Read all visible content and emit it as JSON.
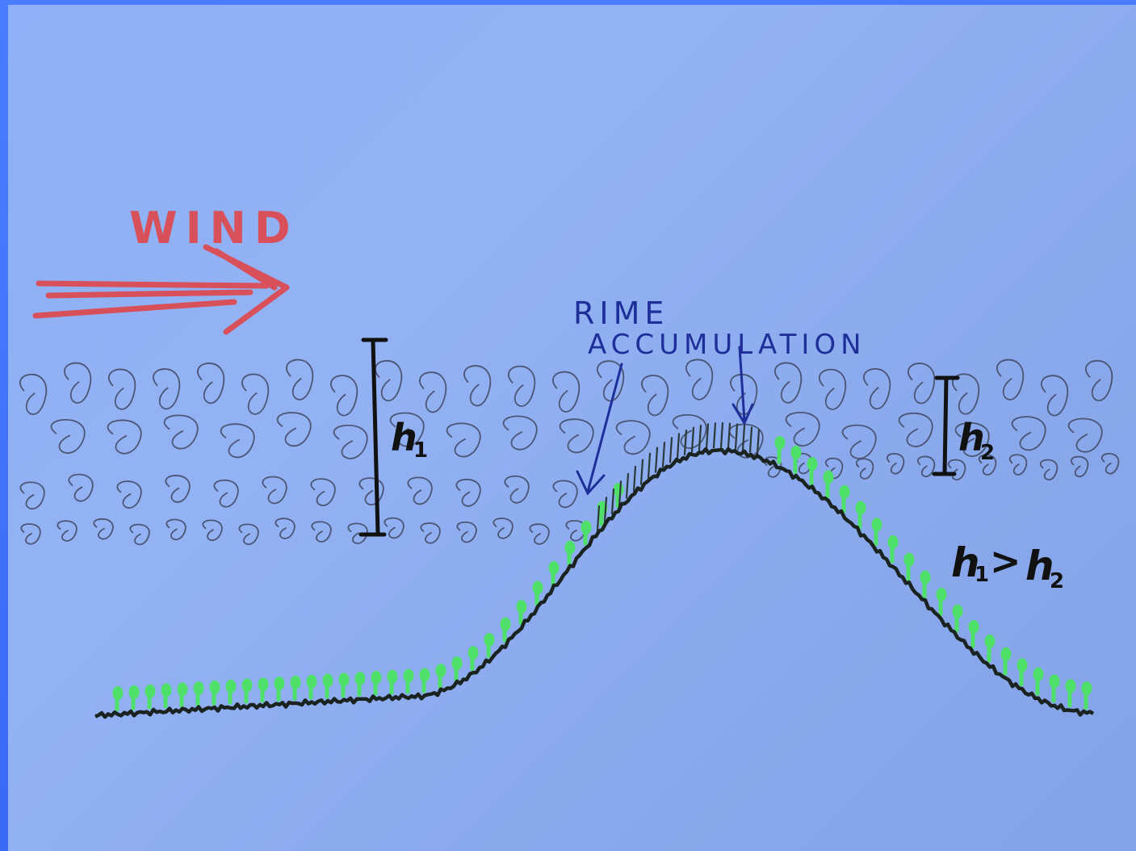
{
  "labels": {
    "wind": "WIND",
    "rime": "RIME",
    "accumulation": "ACCUMULATION",
    "h1": "h",
    "h1_sub": "1",
    "h2": "h",
    "h2_sub": "2",
    "relation_a": "h",
    "relation_a_sub": "1",
    "relation_op": ">",
    "relation_b": "h",
    "relation_b_sub": "2"
  },
  "colors": {
    "wind": "#d8505a",
    "annotation": "#1f2f9a",
    "terrain": "#1a2320",
    "vegetation": "#4fe06a",
    "cloud": "#3a3f55",
    "background_frame": "#3a6af5",
    "paper": "#90b0f4"
  }
}
